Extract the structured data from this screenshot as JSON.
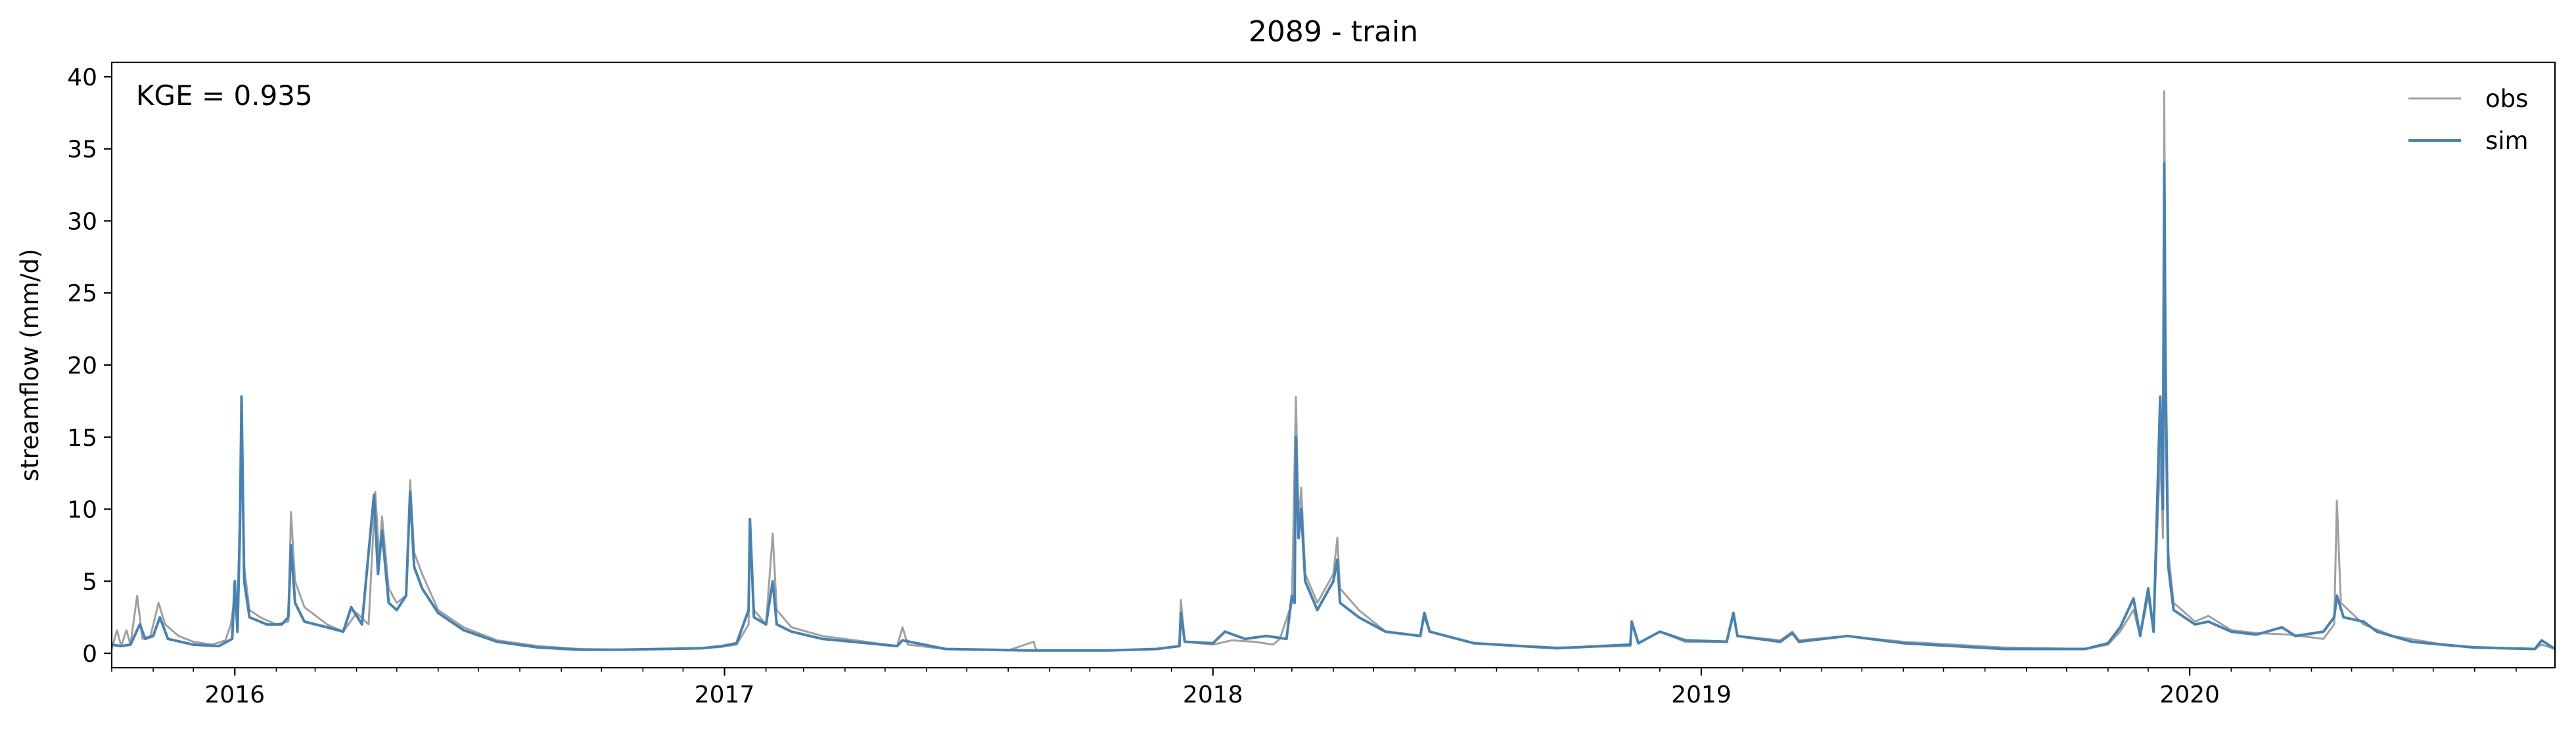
{
  "chart_data": {
    "type": "line",
    "title": "2089 - train",
    "xlabel": "",
    "ylabel": "streamflow (mm/d)",
    "annotation": "KGE = 0.935",
    "x_range": [
      "2015-10-01",
      "2020-09-30"
    ],
    "ylim": [
      -1,
      41
    ],
    "y_ticks": [
      0,
      5,
      10,
      15,
      20,
      25,
      30,
      35,
      40
    ],
    "x_ticks": [
      {
        "date": "2016-01-01",
        "label": "2016"
      },
      {
        "date": "2017-01-01",
        "label": "2017"
      },
      {
        "date": "2018-01-01",
        "label": "2018"
      },
      {
        "date": "2019-01-01",
        "label": "2019"
      },
      {
        "date": "2020-01-01",
        "label": "2020"
      }
    ],
    "grid": false,
    "legend_position": "top-right",
    "series": [
      {
        "name": "obs",
        "color": "#a0a0a0",
        "points": [
          [
            "2015-10-01",
            0.3
          ],
          [
            "2015-10-05",
            1.6
          ],
          [
            "2015-10-08",
            0.5
          ],
          [
            "2015-10-12",
            1.6
          ],
          [
            "2015-10-15",
            0.6
          ],
          [
            "2015-10-20",
            4.0
          ],
          [
            "2015-10-24",
            1.0
          ],
          [
            "2015-10-30",
            1.2
          ],
          [
            "2015-11-05",
            3.5
          ],
          [
            "2015-11-10",
            2.0
          ],
          [
            "2015-11-20",
            1.2
          ],
          [
            "2015-12-01",
            0.8
          ],
          [
            "2015-12-15",
            0.6
          ],
          [
            "2015-12-25",
            0.9
          ],
          [
            "2015-12-29",
            2.0
          ],
          [
            "2016-01-01",
            4.0
          ],
          [
            "2016-01-03",
            1.5
          ],
          [
            "2016-01-05",
            8.0
          ],
          [
            "2016-01-06",
            17.6
          ],
          [
            "2016-01-08",
            6.0
          ],
          [
            "2016-01-12",
            3.0
          ],
          [
            "2016-01-20",
            2.5
          ],
          [
            "2016-02-01",
            2.0
          ],
          [
            "2016-02-10",
            2.2
          ],
          [
            "2016-02-12",
            9.8
          ],
          [
            "2016-02-15",
            5.0
          ],
          [
            "2016-02-22",
            3.2
          ],
          [
            "2016-03-10",
            2.0
          ],
          [
            "2016-03-22",
            1.5
          ],
          [
            "2016-04-01",
            2.8
          ],
          [
            "2016-04-10",
            2.0
          ],
          [
            "2016-04-15",
            11.2
          ],
          [
            "2016-04-18",
            6.5
          ],
          [
            "2016-04-20",
            9.5
          ],
          [
            "2016-04-25",
            4.5
          ],
          [
            "2016-05-01",
            3.5
          ],
          [
            "2016-05-08",
            4.0
          ],
          [
            "2016-05-11",
            12.0
          ],
          [
            "2016-05-14",
            7.0
          ],
          [
            "2016-05-20",
            5.5
          ],
          [
            "2016-06-01",
            3.0
          ],
          [
            "2016-06-20",
            1.8
          ],
          [
            "2016-07-15",
            0.9
          ],
          [
            "2016-08-15",
            0.5
          ],
          [
            "2016-09-15",
            0.3
          ],
          [
            "2016-10-15",
            0.25
          ],
          [
            "2016-11-15",
            0.3
          ],
          [
            "2016-12-15",
            0.35
          ],
          [
            "2016-12-30",
            0.45
          ],
          [
            "2017-01-10",
            0.6
          ],
          [
            "2017-01-19",
            2.0
          ],
          [
            "2017-01-20",
            9.0
          ],
          [
            "2017-01-23",
            3.0
          ],
          [
            "2017-02-01",
            2.0
          ],
          [
            "2017-02-06",
            8.3
          ],
          [
            "2017-02-09",
            3.0
          ],
          [
            "2017-02-20",
            1.8
          ],
          [
            "2017-03-15",
            1.2
          ],
          [
            "2017-04-01",
            1.0
          ],
          [
            "2017-05-10",
            0.5
          ],
          [
            "2017-05-14",
            1.8
          ],
          [
            "2017-05-18",
            0.6
          ],
          [
            "2017-06-15",
            0.3
          ],
          [
            "2017-08-01",
            0.2
          ],
          [
            "2017-08-20",
            0.8
          ],
          [
            "2017-08-22",
            0.2
          ],
          [
            "2017-10-15",
            0.2
          ],
          [
            "2017-11-20",
            0.3
          ],
          [
            "2017-12-07",
            0.5
          ],
          [
            "2017-12-08",
            3.7
          ],
          [
            "2017-12-11",
            0.8
          ],
          [
            "2018-01-01",
            0.6
          ],
          [
            "2018-01-15",
            0.9
          ],
          [
            "2018-02-01",
            0.8
          ],
          [
            "2018-02-15",
            0.6
          ],
          [
            "2018-02-20",
            1.0
          ],
          [
            "2018-03-01",
            3.5
          ],
          [
            "2018-03-04",
            17.8
          ],
          [
            "2018-03-06",
            9.0
          ],
          [
            "2018-03-08",
            11.5
          ],
          [
            "2018-03-11",
            5.5
          ],
          [
            "2018-03-20",
            3.5
          ],
          [
            "2018-04-01",
            5.5
          ],
          [
            "2018-04-04",
            8.0
          ],
          [
            "2018-04-06",
            4.5
          ],
          [
            "2018-04-20",
            3.0
          ],
          [
            "2018-05-10",
            1.5
          ],
          [
            "2018-06-05",
            1.2
          ],
          [
            "2018-06-08",
            2.5
          ],
          [
            "2018-06-12",
            1.5
          ],
          [
            "2018-07-15",
            0.7
          ],
          [
            "2018-09-15",
            0.4
          ],
          [
            "2018-11-09",
            0.5
          ],
          [
            "2018-11-10",
            2.0
          ],
          [
            "2018-11-15",
            0.7
          ],
          [
            "2018-12-01",
            1.5
          ],
          [
            "2018-12-20",
            0.8
          ],
          [
            "2019-01-20",
            0.8
          ],
          [
            "2019-01-25",
            2.6
          ],
          [
            "2019-01-28",
            1.2
          ],
          [
            "2019-03-01",
            0.9
          ],
          [
            "2019-03-10",
            1.5
          ],
          [
            "2019-03-15",
            0.9
          ],
          [
            "2019-04-20",
            1.2
          ],
          [
            "2019-06-01",
            0.8
          ],
          [
            "2019-08-15",
            0.4
          ],
          [
            "2019-10-15",
            0.3
          ],
          [
            "2019-11-01",
            0.6
          ],
          [
            "2019-11-10",
            1.5
          ],
          [
            "2019-11-20",
            3.0
          ],
          [
            "2019-11-25",
            1.2
          ],
          [
            "2019-12-01",
            4.0
          ],
          [
            "2019-12-05",
            1.5
          ],
          [
            "2019-12-10",
            14.0
          ],
          [
            "2019-12-12",
            8.0
          ],
          [
            "2019-12-13",
            39.0
          ],
          [
            "2019-12-14",
            22.0
          ],
          [
            "2019-12-16",
            7.0
          ],
          [
            "2019-12-20",
            3.5
          ],
          [
            "2020-01-05",
            2.2
          ],
          [
            "2020-01-15",
            2.6
          ],
          [
            "2020-02-01",
            1.6
          ],
          [
            "2020-02-20",
            1.4
          ],
          [
            "2020-03-15",
            1.3
          ],
          [
            "2020-04-10",
            1.0
          ],
          [
            "2020-04-18",
            2.0
          ],
          [
            "2020-04-20",
            10.6
          ],
          [
            "2020-04-23",
            3.5
          ],
          [
            "2020-05-10",
            2.0
          ],
          [
            "2020-06-01",
            1.2
          ],
          [
            "2020-07-15",
            0.5
          ],
          [
            "2020-09-15",
            0.3
          ],
          [
            "2020-09-20",
            0.6
          ],
          [
            "2020-09-30",
            0.3
          ]
        ]
      },
      {
        "name": "sim",
        "color": "#4682b4",
        "points": [
          [
            "2015-10-01",
            0.6
          ],
          [
            "2015-10-08",
            0.5
          ],
          [
            "2015-10-15",
            0.6
          ],
          [
            "2015-10-22",
            2.0
          ],
          [
            "2015-10-26",
            1.0
          ],
          [
            "2015-11-01",
            1.2
          ],
          [
            "2015-11-06",
            2.5
          ],
          [
            "2015-11-12",
            1.0
          ],
          [
            "2015-12-01",
            0.6
          ],
          [
            "2015-12-20",
            0.5
          ],
          [
            "2015-12-30",
            1.0
          ],
          [
            "2016-01-01",
            5.0
          ],
          [
            "2016-01-03",
            1.5
          ],
          [
            "2016-01-05",
            10.0
          ],
          [
            "2016-01-06",
            17.8
          ],
          [
            "2016-01-08",
            5.0
          ],
          [
            "2016-01-12",
            2.5
          ],
          [
            "2016-01-25",
            2.0
          ],
          [
            "2016-02-05",
            2.0
          ],
          [
            "2016-02-10",
            2.5
          ],
          [
            "2016-02-12",
            7.5
          ],
          [
            "2016-02-15",
            3.5
          ],
          [
            "2016-02-22",
            2.2
          ],
          [
            "2016-03-10",
            1.8
          ],
          [
            "2016-03-22",
            1.5
          ],
          [
            "2016-03-28",
            3.2
          ],
          [
            "2016-04-05",
            2.0
          ],
          [
            "2016-04-14",
            11.0
          ],
          [
            "2016-04-17",
            5.5
          ],
          [
            "2016-04-20",
            8.5
          ],
          [
            "2016-04-25",
            3.5
          ],
          [
            "2016-05-01",
            3.0
          ],
          [
            "2016-05-08",
            4.0
          ],
          [
            "2016-05-11",
            11.2
          ],
          [
            "2016-05-14",
            6.0
          ],
          [
            "2016-05-20",
            4.5
          ],
          [
            "2016-06-01",
            2.8
          ],
          [
            "2016-06-20",
            1.6
          ],
          [
            "2016-07-15",
            0.8
          ],
          [
            "2016-08-15",
            0.4
          ],
          [
            "2016-09-15",
            0.25
          ],
          [
            "2016-10-15",
            0.25
          ],
          [
            "2016-11-15",
            0.3
          ],
          [
            "2016-12-15",
            0.35
          ],
          [
            "2016-12-30",
            0.5
          ],
          [
            "2017-01-10",
            0.7
          ],
          [
            "2017-01-19",
            3.0
          ],
          [
            "2017-01-20",
            9.3
          ],
          [
            "2017-01-23",
            2.5
          ],
          [
            "2017-02-01",
            2.0
          ],
          [
            "2017-02-06",
            5.0
          ],
          [
            "2017-02-09",
            2.0
          ],
          [
            "2017-02-20",
            1.5
          ],
          [
            "2017-03-15",
            1.0
          ],
          [
            "2017-05-10",
            0.5
          ],
          [
            "2017-05-14",
            0.9
          ],
          [
            "2017-06-15",
            0.3
          ],
          [
            "2017-08-15",
            0.2
          ],
          [
            "2017-10-15",
            0.2
          ],
          [
            "2017-11-20",
            0.3
          ],
          [
            "2017-12-07",
            0.5
          ],
          [
            "2017-12-08",
            2.8
          ],
          [
            "2017-12-11",
            0.8
          ],
          [
            "2018-01-01",
            0.7
          ],
          [
            "2018-01-10",
            1.5
          ],
          [
            "2018-01-25",
            1.0
          ],
          [
            "2018-02-10",
            1.2
          ],
          [
            "2018-02-25",
            1.0
          ],
          [
            "2018-03-01",
            4.0
          ],
          [
            "2018-03-03",
            3.5
          ],
          [
            "2018-03-04",
            15.0
          ],
          [
            "2018-03-06",
            8.0
          ],
          [
            "2018-03-08",
            10.0
          ],
          [
            "2018-03-11",
            5.0
          ],
          [
            "2018-03-20",
            3.0
          ],
          [
            "2018-04-01",
            5.0
          ],
          [
            "2018-04-04",
            6.5
          ],
          [
            "2018-04-06",
            3.5
          ],
          [
            "2018-04-20",
            2.5
          ],
          [
            "2018-05-10",
            1.5
          ],
          [
            "2018-06-05",
            1.2
          ],
          [
            "2018-06-08",
            2.8
          ],
          [
            "2018-06-12",
            1.5
          ],
          [
            "2018-07-15",
            0.7
          ],
          [
            "2018-09-15",
            0.35
          ],
          [
            "2018-11-09",
            0.6
          ],
          [
            "2018-11-10",
            2.2
          ],
          [
            "2018-11-15",
            0.7
          ],
          [
            "2018-12-01",
            1.5
          ],
          [
            "2018-12-20",
            0.9
          ],
          [
            "2019-01-20",
            0.8
          ],
          [
            "2019-01-25",
            2.8
          ],
          [
            "2019-01-28",
            1.2
          ],
          [
            "2019-03-01",
            0.8
          ],
          [
            "2019-03-10",
            1.4
          ],
          [
            "2019-03-15",
            0.8
          ],
          [
            "2019-04-20",
            1.2
          ],
          [
            "2019-06-01",
            0.7
          ],
          [
            "2019-08-15",
            0.3
          ],
          [
            "2019-10-15",
            0.3
          ],
          [
            "2019-11-01",
            0.7
          ],
          [
            "2019-11-10",
            1.8
          ],
          [
            "2019-11-20",
            3.8
          ],
          [
            "2019-11-25",
            1.2
          ],
          [
            "2019-12-01",
            4.5
          ],
          [
            "2019-12-05",
            1.5
          ],
          [
            "2019-12-10",
            17.8
          ],
          [
            "2019-12-12",
            10.0
          ],
          [
            "2019-12-13",
            34.0
          ],
          [
            "2019-12-14",
            18.0
          ],
          [
            "2019-12-16",
            6.0
          ],
          [
            "2019-12-20",
            3.0
          ],
          [
            "2020-01-05",
            2.0
          ],
          [
            "2020-01-15",
            2.2
          ],
          [
            "2020-02-01",
            1.5
          ],
          [
            "2020-02-20",
            1.3
          ],
          [
            "2020-03-10",
            1.8
          ],
          [
            "2020-03-20",
            1.2
          ],
          [
            "2020-04-10",
            1.5
          ],
          [
            "2020-04-18",
            2.5
          ],
          [
            "2020-04-20",
            4.0
          ],
          [
            "2020-04-25",
            2.5
          ],
          [
            "2020-05-10",
            2.2
          ],
          [
            "2020-05-20",
            1.5
          ],
          [
            "2020-06-15",
            0.8
          ],
          [
            "2020-08-01",
            0.4
          ],
          [
            "2020-09-15",
            0.3
          ],
          [
            "2020-09-20",
            0.9
          ],
          [
            "2020-09-30",
            0.3
          ]
        ]
      }
    ]
  }
}
